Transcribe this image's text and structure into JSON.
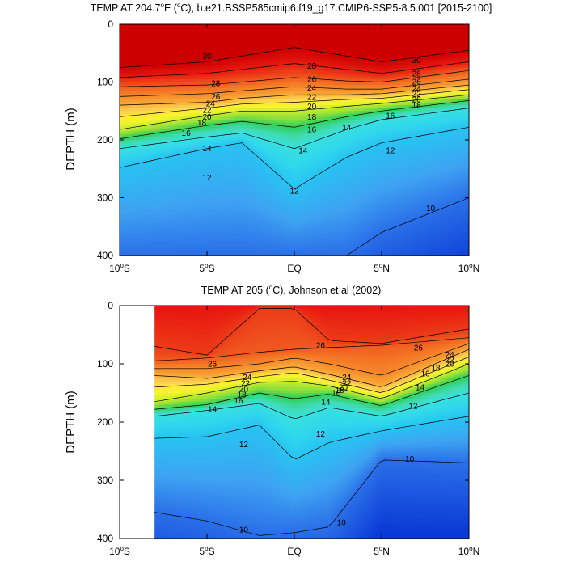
{
  "chart_data": [
    {
      "type": "heatmap",
      "subtype": "filled-contour",
      "title": "TEMP AT 204.7°E (°C), b.e21.BSSP585cmip6.f19_g17.CMIP6-SSP5-8.5.001 [2015-2100]",
      "title_parts": {
        "pre": "TEMP AT 204.7",
        "deg": "o",
        "post": "E (",
        "unit_deg": "o",
        "post2": "C), b.e21.BSSP585cmip6.f19_g17.CMIP6-SSP5-8.5.001 [2015-2100]"
      },
      "ylabel": "DEPTH (m)",
      "xlabel": "",
      "xlim": [
        -10,
        10
      ],
      "ylim": [
        400,
        0
      ],
      "y_inverted": true,
      "x_ticks": [
        {
          "value": -10,
          "num": "10",
          "hemi": "S"
        },
        {
          "value": -5,
          "num": "5",
          "hemi": "S"
        },
        {
          "value": 0,
          "num": "EQ",
          "hemi": ""
        },
        {
          "value": 5,
          "num": "5",
          "hemi": "N"
        },
        {
          "value": 10,
          "num": "10",
          "hemi": "N"
        }
      ],
      "y_ticks": [
        0,
        100,
        200,
        300,
        400
      ],
      "contour_interval": 1,
      "data_x_range": [
        -10,
        10
      ],
      "isotherms": [
        {
          "level": 30,
          "x": [
            -10,
            -5,
            -3,
            0,
            3,
            5,
            10
          ],
          "y": [
            75,
            65,
            55,
            40,
            55,
            65,
            45
          ]
        },
        {
          "level": 28,
          "x": [
            -10,
            -5,
            -3,
            0,
            3,
            5,
            10
          ],
          "y": [
            92,
            85,
            78,
            68,
            78,
            85,
            65
          ]
        },
        {
          "level": 26,
          "x": [
            -10,
            -5,
            -3,
            0,
            3,
            5,
            10
          ],
          "y": [
            108,
            105,
            100,
            92,
            98,
            100,
            80
          ]
        },
        {
          "level": 24,
          "x": [
            -10,
            -5,
            -3,
            0,
            3,
            5,
            10
          ],
          "y": [
            125,
            120,
            115,
            108,
            112,
            112,
            95
          ]
        },
        {
          "level": 22,
          "x": [
            -10,
            -5,
            -3,
            0,
            3,
            5,
            10
          ],
          "y": [
            140,
            135,
            128,
            122,
            122,
            120,
            105
          ]
        },
        {
          "level": 20,
          "x": [
            -10,
            -5,
            -3,
            0,
            3,
            5,
            10
          ],
          "y": [
            160,
            145,
            138,
            135,
            130,
            128,
            113
          ]
        },
        {
          "level": 18,
          "x": [
            -10,
            -5,
            -3,
            0,
            3,
            5,
            10
          ],
          "y": [
            182,
            158,
            150,
            150,
            142,
            137,
            122
          ]
        },
        {
          "level": 16,
          "x": [
            -10,
            -5,
            -3,
            0,
            3,
            5,
            10
          ],
          "y": [
            198,
            175,
            168,
            178,
            160,
            150,
            132
          ]
        },
        {
          "level": 14,
          "x": [
            -10,
            -5,
            -3,
            0,
            3,
            5,
            10
          ],
          "y": [
            215,
            195,
            188,
            215,
            182,
            165,
            145
          ]
        },
        {
          "level": 12,
          "x": [
            -10,
            -5,
            -3,
            0,
            3,
            5,
            10
          ],
          "y": [
            248,
            215,
            205,
            285,
            230,
            205,
            178
          ]
        },
        {
          "level": 10,
          "x": [
            -10,
            -5,
            -3,
            0,
            3,
            5,
            10
          ],
          "y": [
            400,
            400,
            400,
            400,
            400,
            360,
            300
          ]
        }
      ],
      "contour_labels": [
        {
          "text": "30",
          "x": -5,
          "y": 55
        },
        {
          "text": "28",
          "x": 1,
          "y": 72
        },
        {
          "text": "26",
          "x": 1,
          "y": 95
        },
        {
          "text": "24",
          "x": 1,
          "y": 110
        },
        {
          "text": "22",
          "x": 1,
          "y": 126
        },
        {
          "text": "20",
          "x": 1,
          "y": 142
        },
        {
          "text": "18",
          "x": 1,
          "y": 160
        },
        {
          "text": "16",
          "x": 1,
          "y": 182
        },
        {
          "text": "14",
          "x": 0.5,
          "y": 218
        },
        {
          "text": "12",
          "x": 0,
          "y": 288
        },
        {
          "text": "28",
          "x": -4.5,
          "y": 102
        },
        {
          "text": "26",
          "x": -4.5,
          "y": 125
        },
        {
          "text": "24",
          "x": -4.8,
          "y": 137
        },
        {
          "text": "22",
          "x": -5,
          "y": 148
        },
        {
          "text": "20",
          "x": -5,
          "y": 160
        },
        {
          "text": "18",
          "x": -5.3,
          "y": 170
        },
        {
          "text": "16",
          "x": -6.2,
          "y": 188
        },
        {
          "text": "14",
          "x": -5,
          "y": 215
        },
        {
          "text": "12",
          "x": -5,
          "y": 265
        },
        {
          "text": "30",
          "x": 7,
          "y": 62
        },
        {
          "text": "28",
          "x": 7,
          "y": 85
        },
        {
          "text": "26",
          "x": 7,
          "y": 99
        },
        {
          "text": "24",
          "x": 7,
          "y": 111
        },
        {
          "text": "22",
          "x": 7,
          "y": 120
        },
        {
          "text": "20",
          "x": 7,
          "y": 130
        },
        {
          "text": "18",
          "x": 7,
          "y": 140
        },
        {
          "text": "16",
          "x": 5.5,
          "y": 158
        },
        {
          "text": "14",
          "x": 3,
          "y": 178
        },
        {
          "text": "12",
          "x": 5.5,
          "y": 218
        },
        {
          "text": "10",
          "x": 7.8,
          "y": 318
        }
      ]
    },
    {
      "type": "heatmap",
      "subtype": "filled-contour",
      "title": "TEMP AT 205 (°C), Johnson et al (2002)",
      "title_parts": {
        "pre": "TEMP AT 205 (",
        "deg": "o",
        "post": "C), Johnson et al (2002)"
      },
      "ylabel": "DEPTH (m)",
      "xlabel": "",
      "xlim": [
        -10,
        10
      ],
      "ylim": [
        400,
        0
      ],
      "y_inverted": true,
      "x_ticks": [
        {
          "value": -10,
          "num": "10",
          "hemi": "S"
        },
        {
          "value": -5,
          "num": "5",
          "hemi": "S"
        },
        {
          "value": 0,
          "num": "EQ",
          "hemi": ""
        },
        {
          "value": 5,
          "num": "5",
          "hemi": "N"
        },
        {
          "value": 10,
          "num": "10",
          "hemi": "N"
        }
      ],
      "y_ticks": [
        0,
        100,
        200,
        300,
        400
      ],
      "contour_interval": 1,
      "data_x_range": [
        -8,
        10
      ],
      "isotherms": [
        {
          "level": 27,
          "x": [
            -8,
            -5,
            -2,
            0,
            2,
            5,
            10
          ],
          "y": [
            70,
            85,
            5,
            5,
            60,
            65,
            40
          ]
        },
        {
          "level": 26,
          "x": [
            -8,
            -5,
            -2,
            0,
            2,
            5,
            10
          ],
          "y": [
            95,
            90,
            80,
            75,
            72,
            68,
            55
          ]
        },
        {
          "level": 24,
          "x": [
            -8,
            -5,
            -2,
            0,
            2,
            5,
            10
          ],
          "y": [
            108,
            108,
            100,
            90,
            100,
            120,
            65
          ]
        },
        {
          "level": 22,
          "x": [
            -8,
            -5,
            -2,
            0,
            2,
            5,
            10
          ],
          "y": [
            120,
            125,
            112,
            105,
            118,
            140,
            75
          ]
        },
        {
          "level": 20,
          "x": [
            -8,
            -5,
            -2,
            0,
            2,
            5,
            10
          ],
          "y": [
            140,
            135,
            122,
            115,
            128,
            150,
            88
          ]
        },
        {
          "level": 18,
          "x": [
            -8,
            -5,
            -2,
            0,
            2,
            5,
            10
          ],
          "y": [
            165,
            150,
            132,
            130,
            138,
            160,
            100
          ]
        },
        {
          "level": 16,
          "x": [
            -8,
            -5,
            -2,
            0,
            2,
            5,
            10
          ],
          "y": [
            178,
            170,
            150,
            160,
            152,
            172,
            120
          ]
        },
        {
          "level": 14,
          "x": [
            -8,
            -5,
            -2,
            0,
            2,
            5,
            10
          ],
          "y": [
            190,
            180,
            168,
            195,
            175,
            190,
            150
          ]
        },
        {
          "level": 12,
          "x": [
            -8,
            -5,
            -2,
            0,
            2,
            5,
            10
          ],
          "y": [
            228,
            225,
            205,
            265,
            235,
            215,
            190
          ]
        },
        {
          "level": 10,
          "x": [
            -8,
            -5,
            -2,
            0,
            2,
            5,
            10
          ],
          "y": [
            355,
            370,
            395,
            390,
            380,
            265,
            270
          ]
        }
      ],
      "contour_labels": [
        {
          "text": "26",
          "x": 1.5,
          "y": 68
        },
        {
          "text": "26",
          "x": -4.7,
          "y": 100
        },
        {
          "text": "24",
          "x": -2.7,
          "y": 123
        },
        {
          "text": "22",
          "x": -2.8,
          "y": 133
        },
        {
          "text": "20",
          "x": -2.9,
          "y": 143
        },
        {
          "text": "18",
          "x": -3.0,
          "y": 153
        },
        {
          "text": "16",
          "x": -3.2,
          "y": 163
        },
        {
          "text": "14",
          "x": -4.7,
          "y": 178
        },
        {
          "text": "12",
          "x": -2.9,
          "y": 238
        },
        {
          "text": "12",
          "x": 1.5,
          "y": 220
        },
        {
          "text": "24",
          "x": 3.0,
          "y": 123
        },
        {
          "text": "22",
          "x": 3.0,
          "y": 133
        },
        {
          "text": "20",
          "x": 2.8,
          "y": 140
        },
        {
          "text": "18",
          "x": 2.6,
          "y": 145
        },
        {
          "text": "16",
          "x": 2.4,
          "y": 150
        },
        {
          "text": "14",
          "x": 1.8,
          "y": 165
        },
        {
          "text": "26",
          "x": 7.1,
          "y": 72
        },
        {
          "text": "24",
          "x": 8.9,
          "y": 84
        },
        {
          "text": "22",
          "x": 8.9,
          "y": 93
        },
        {
          "text": "20",
          "x": 8.9,
          "y": 100
        },
        {
          "text": "18",
          "x": 8.1,
          "y": 107
        },
        {
          "text": "16",
          "x": 7.5,
          "y": 117
        },
        {
          "text": "14",
          "x": 7.2,
          "y": 140
        },
        {
          "text": "12",
          "x": 6.8,
          "y": 172
        },
        {
          "text": "10",
          "x": 6.6,
          "y": 263
        },
        {
          "text": "10",
          "x": 2.7,
          "y": 372
        },
        {
          "text": "10",
          "x": -2.9,
          "y": 385
        }
      ]
    }
  ],
  "colors": {
    "background": "#ffffff",
    "missing": "#ffffff",
    "axis": "#000000",
    "contour_line": "#000000",
    "colormap": [
      {
        "t": 8,
        "c": "#0a3bd6"
      },
      {
        "t": 10,
        "c": "#2a6fe8"
      },
      {
        "t": 11,
        "c": "#3ea3f2"
      },
      {
        "t": 12,
        "c": "#28c3f2"
      },
      {
        "t": 13,
        "c": "#2fd6ee"
      },
      {
        "t": 14,
        "c": "#38e0e0"
      },
      {
        "t": 15,
        "c": "#40dcb0"
      },
      {
        "t": 16,
        "c": "#2ecf5a"
      },
      {
        "t": 17,
        "c": "#8fe03a"
      },
      {
        "t": 18,
        "c": "#c8ec30"
      },
      {
        "t": 19,
        "c": "#f6f52a"
      },
      {
        "t": 20,
        "c": "#fde640"
      },
      {
        "t": 21,
        "c": "#fdcb50"
      },
      {
        "t": 22,
        "c": "#f9b03a"
      },
      {
        "t": 23,
        "c": "#f79a30"
      },
      {
        "t": 24,
        "c": "#f6892a"
      },
      {
        "t": 25,
        "c": "#f47424"
      },
      {
        "t": 26,
        "c": "#f05a20"
      },
      {
        "t": 27,
        "c": "#ec3c18"
      },
      {
        "t": 28,
        "c": "#e81b10"
      },
      {
        "t": 30,
        "c": "#cc0000"
      }
    ]
  }
}
